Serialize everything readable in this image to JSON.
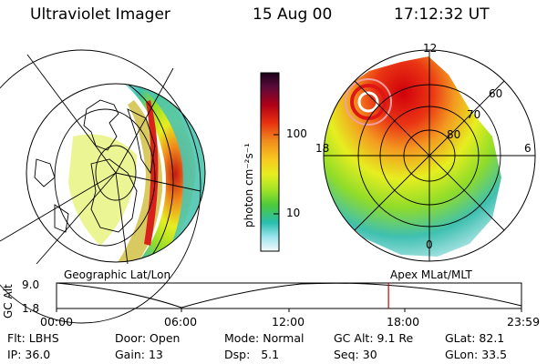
{
  "header": {
    "instrument": "Ultraviolet Imager",
    "date": "15 Aug 00",
    "time": "17:12:32 UT"
  },
  "colorbar": {
    "unit_label": "photon cm⁻²s⁻¹",
    "ticks": [
      "100",
      "10"
    ],
    "colors": [
      "#1a0018",
      "#5a0a3a",
      "#b00018",
      "#e83010",
      "#f08a1c",
      "#f7c61f",
      "#e6ee20",
      "#9ee227",
      "#4dc93a",
      "#28bfae",
      "#9ce3ee",
      "#f4fbfc"
    ]
  },
  "left_map": {
    "caption": "Geographic Lat/Lon"
  },
  "right_map": {
    "caption": "Apex MLat/MLT",
    "mlt_labels": {
      "top": "12",
      "bottom": "0",
      "left": "18",
      "right": "6"
    },
    "lat_labels": [
      "60",
      "70",
      "80"
    ]
  },
  "altitude_plot": {
    "ylabel": "GC Alt",
    "yticks": [
      "9.0",
      "1.8"
    ],
    "xticks": [
      "00:00",
      "06:00",
      "12:00",
      "18:00",
      "23:59"
    ],
    "current_time_fraction": 0.714
  },
  "status": {
    "row1": [
      {
        "label": "Flt:",
        "value": "LBHS"
      },
      {
        "label": "Door:",
        "value": "Open"
      },
      {
        "label": "Mode:",
        "value": "Normal"
      },
      {
        "label": "GC Alt:",
        "value": "9.1 Re"
      },
      {
        "label": "GLat:",
        "value": "82.1"
      }
    ],
    "row2": [
      {
        "label": "IP:",
        "value": "36.0"
      },
      {
        "label": "Gain:",
        "value": "13"
      },
      {
        "label": "Dsp:",
        "value": "5.1"
      },
      {
        "label": "Seq:",
        "value": "30"
      },
      {
        "label": "GLon:",
        "value": "33.5"
      }
    ]
  }
}
